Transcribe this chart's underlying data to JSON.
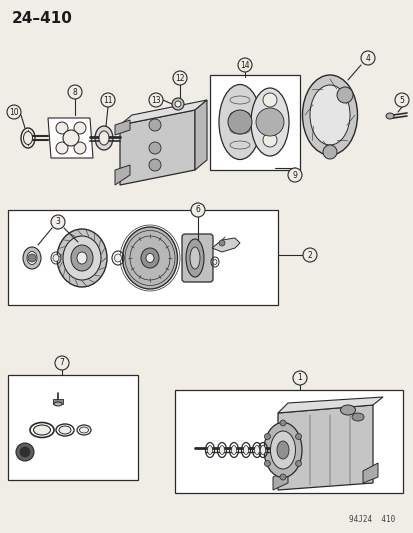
{
  "title": "24–410",
  "footer": "94J24  410",
  "bg_color": "#f0ede6",
  "line_color": "#2a2a2a",
  "text_color": "#1a1a1a",
  "white": "#ffffff",
  "gray1": "#d0cdc8",
  "gray2": "#b8b5b0"
}
